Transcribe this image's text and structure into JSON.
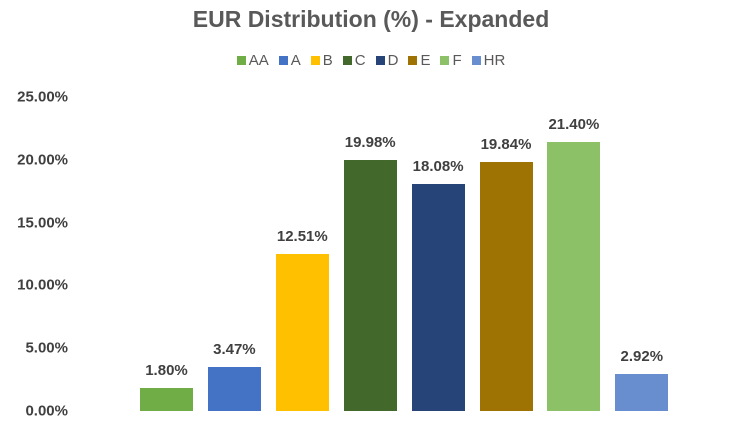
{
  "chart_data": {
    "type": "bar",
    "title": "EUR Distribution (%) - Expanded",
    "xlabel": "",
    "ylabel": "",
    "categories": [
      "AA",
      "A",
      "B",
      "C",
      "D",
      "E",
      "F",
      "HR"
    ],
    "values": [
      1.8,
      3.47,
      12.51,
      19.98,
      18.08,
      19.84,
      21.4,
      2.92
    ],
    "value_labels": [
      "1.80%",
      "3.47%",
      "12.51%",
      "19.98%",
      "18.08%",
      "19.84%",
      "21.40%",
      "2.92%"
    ],
    "colors": [
      "#70AD47",
      "#4472C4",
      "#FFC000",
      "#43682B",
      "#264478",
      "#9E7203",
      "#8CC168",
      "#698ED0"
    ],
    "ylim": [
      0,
      25
    ],
    "yticks": [
      "0.00%",
      "5.00%",
      "10.00%",
      "15.00%",
      "20.00%",
      "25.00%"
    ],
    "grid": false,
    "legend_position": "top"
  }
}
